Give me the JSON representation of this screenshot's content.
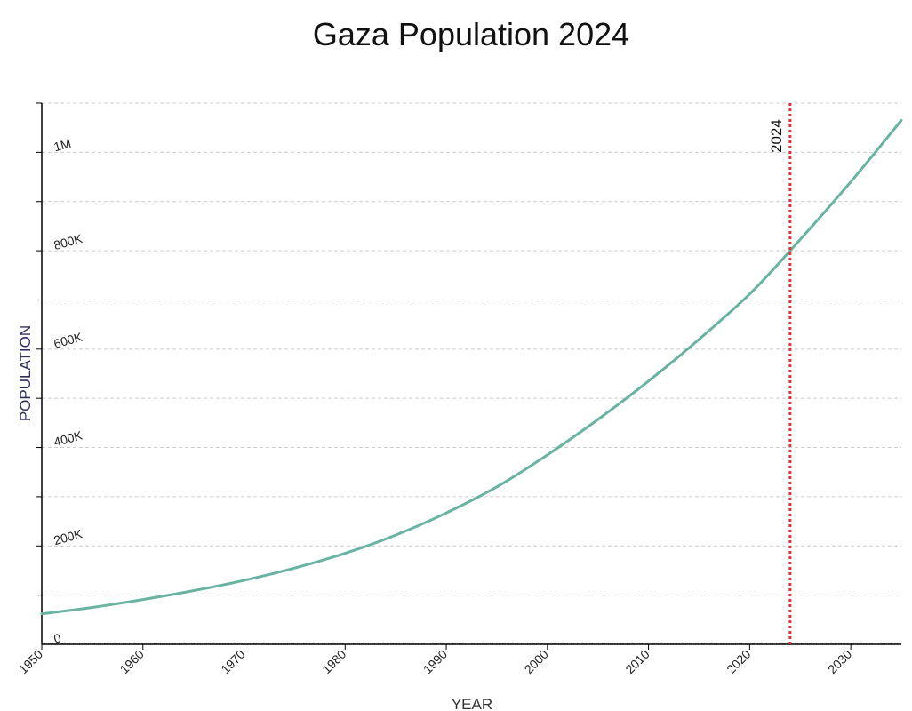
{
  "chart_data": {
    "type": "line",
    "title": "Gaza Population 2024",
    "xlabel": "YEAR",
    "ylabel": "POPULATION",
    "xlim": [
      1950,
      2035
    ],
    "ylim": [
      0,
      1100000
    ],
    "x_ticks": [
      1950,
      1960,
      1970,
      1980,
      1990,
      2000,
      2010,
      2020,
      2030
    ],
    "y_ticks": [
      0,
      200000,
      400000,
      600000,
      800000,
      1000000
    ],
    "y_tick_labels": [
      "0",
      "200K",
      "400K",
      "600K",
      "800K",
      "1M"
    ],
    "grid": "horizontal dashed",
    "series": [
      {
        "color": "#69b3a2",
        "x": [
          1950,
          1955,
          1960,
          1965,
          1970,
          1975,
          1980,
          1985,
          1990,
          1995,
          2000,
          2005,
          2010,
          2015,
          2020,
          2024,
          2030,
          2035
        ],
        "y": [
          62000,
          75000,
          91000,
          109000,
          130000,
          155000,
          185000,
          222000,
          267000,
          320000,
          385000,
          457000,
          535000,
          620000,
          712000,
          800000,
          940000,
          1065000
        ]
      }
    ],
    "reference_line": {
      "x": 2024,
      "label": "2024",
      "color": "#e8303a"
    },
    "colors": {
      "axis": "#000000",
      "grid": "#cccccc",
      "ylabel": "#2e2e5c",
      "xlabel": "#333333"
    }
  }
}
